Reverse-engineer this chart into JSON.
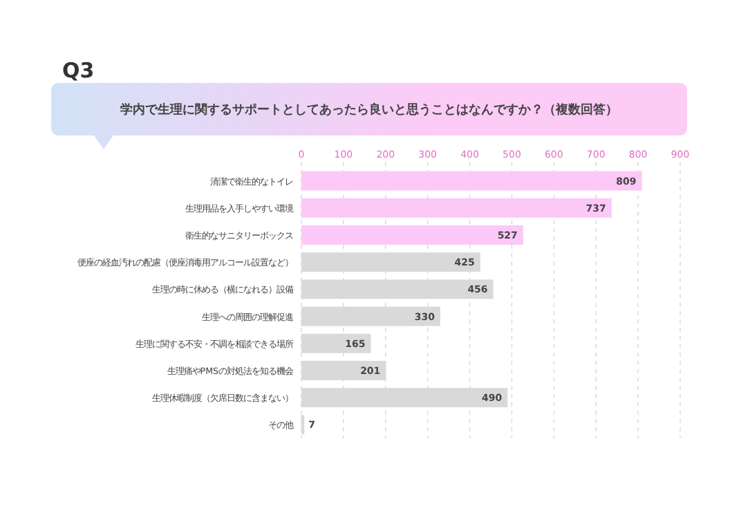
{
  "chart_data": {
    "type": "bar",
    "orientation": "horizontal",
    "title": "Q3",
    "subtitle": "学内で生理に関するサポートとしてあったら良いと思うことはなんですか？（複数回答）",
    "categories": [
      "清潔で衛生的なトイレ",
      "生理用品を入手しやすい環境",
      "衛生的なサニタリーボックス",
      "便座の経血汚れの配慮（便座消毒用アルコール設置など）",
      "生理の時に休める（横になれる）設備",
      "生理への周囲の理解促進",
      "生理に関する不安・不調を相談できる場所",
      "生理痛やPMSの対処法を知る機会",
      "生理休暇制度（欠席日数に含まない）",
      "その他"
    ],
    "values": [
      809,
      737,
      527,
      425,
      456,
      330,
      165,
      201,
      490,
      7
    ],
    "colors": [
      "#fcc8f7",
      "#fcc8f7",
      "#fcc8f7",
      "#d9d9d9",
      "#d9d9d9",
      "#d9d9d9",
      "#d9d9d9",
      "#d9d9d9",
      "#d9d9d9",
      "#d9d9d9"
    ],
    "xlim": [
      0,
      900
    ],
    "xticks": [
      0,
      100,
      200,
      300,
      400,
      500,
      600,
      700,
      800,
      900
    ],
    "grid": "x",
    "data_labels": true
  }
}
